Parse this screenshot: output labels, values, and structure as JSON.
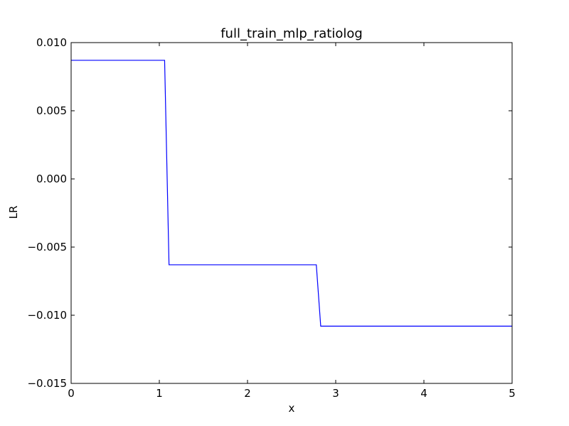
{
  "chart_data": {
    "type": "line",
    "title": "full_train_mlp_ratiolog",
    "xlabel": "x",
    "ylabel": "LR",
    "xlim": [
      0,
      5
    ],
    "ylim": [
      -0.015,
      0.01
    ],
    "grid": false,
    "x_ticks": [
      0,
      1,
      2,
      3,
      4,
      5
    ],
    "x_tick_labels": [
      "0",
      "1",
      "2",
      "3",
      "4",
      "5"
    ],
    "y_ticks": [
      -0.015,
      -0.01,
      -0.005,
      0.0,
      0.005,
      0.01
    ],
    "y_tick_labels": [
      "−0.015",
      "−0.010",
      "−0.005",
      "0.000",
      "0.005",
      "0.010"
    ],
    "series": [
      {
        "name": "LR",
        "color": "#0000ff",
        "x": [
          0,
          1.06,
          1.11,
          2.78,
          2.83,
          5
        ],
        "y": [
          0.0087,
          0.0087,
          -0.0063,
          -0.0063,
          -0.0108,
          -0.0108
        ]
      }
    ]
  }
}
